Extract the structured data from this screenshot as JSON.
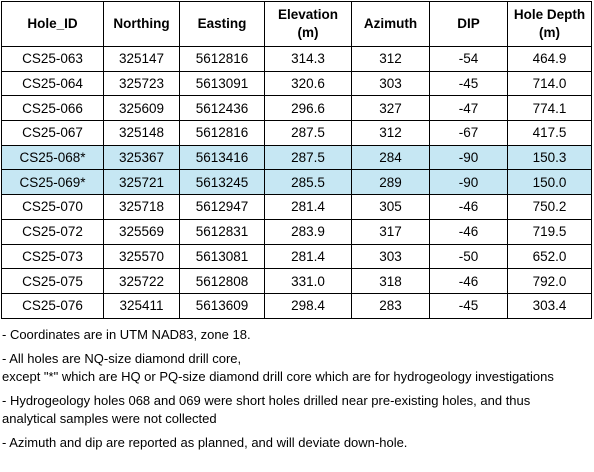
{
  "table": {
    "headers": [
      {
        "line1": "Hole_ID",
        "line2": ""
      },
      {
        "line1": "Northing",
        "line2": ""
      },
      {
        "line1": "Easting",
        "line2": ""
      },
      {
        "line1": "Elevation",
        "line2": "(m)"
      },
      {
        "line1": "Azimuth",
        "line2": ""
      },
      {
        "line1": "DIP",
        "line2": ""
      },
      {
        "line1": "Hole Depth",
        "line2": "(m)"
      }
    ],
    "rows": [
      {
        "hole_id": "CS25-063",
        "northing": "325147",
        "easting": "5612816",
        "elevation": "314.3",
        "azimuth": "312",
        "dip": "-54",
        "depth": "464.9",
        "highlight": false
      },
      {
        "hole_id": "CS25-064",
        "northing": "325723",
        "easting": "5613091",
        "elevation": "320.6",
        "azimuth": "303",
        "dip": "-45",
        "depth": "714.0",
        "highlight": false
      },
      {
        "hole_id": "CS25-066",
        "northing": "325609",
        "easting": "5612436",
        "elevation": "296.6",
        "azimuth": "327",
        "dip": "-47",
        "depth": "774.1",
        "highlight": false
      },
      {
        "hole_id": "CS25-067",
        "northing": "325148",
        "easting": "5612816",
        "elevation": "287.5",
        "azimuth": "312",
        "dip": "-67",
        "depth": "417.5",
        "highlight": false
      },
      {
        "hole_id": "CS25-068*",
        "northing": "325367",
        "easting": "5613416",
        "elevation": "287.5",
        "azimuth": "284",
        "dip": "-90",
        "depth": "150.3",
        "highlight": true
      },
      {
        "hole_id": "CS25-069*",
        "northing": "325721",
        "easting": "5613245",
        "elevation": "285.5",
        "azimuth": "289",
        "dip": "-90",
        "depth": "150.0",
        "highlight": true
      },
      {
        "hole_id": "CS25-070",
        "northing": "325718",
        "easting": "5612947",
        "elevation": "281.4",
        "azimuth": "305",
        "dip": "-46",
        "depth": "750.2",
        "highlight": false
      },
      {
        "hole_id": "CS25-072",
        "northing": "325569",
        "easting": "5612831",
        "elevation": "283.9",
        "azimuth": "317",
        "dip": "-46",
        "depth": "719.5",
        "highlight": false
      },
      {
        "hole_id": "CS25-073",
        "northing": "325570",
        "easting": "5613081",
        "elevation": "281.4",
        "azimuth": "303",
        "dip": "-50",
        "depth": "652.0",
        "highlight": false
      },
      {
        "hole_id": "CS25-075",
        "northing": "325722",
        "easting": "5612808",
        "elevation": "331.0",
        "azimuth": "318",
        "dip": "-46",
        "depth": "792.0",
        "highlight": false
      },
      {
        "hole_id": "CS25-076",
        "northing": "325411",
        "easting": "5613609",
        "elevation": "298.4",
        "azimuth": "283",
        "dip": "-45",
        "depth": "303.4",
        "highlight": false
      }
    ],
    "highlight_color": "#c6e7f3"
  },
  "notes": [
    {
      "lines": [
        "- Coordinates are in UTM NAD83, zone 18."
      ]
    },
    {
      "lines": [
        "- All holes are NQ-size diamond drill core,",
        "except \"*\" which are HQ or PQ-size diamond drill core which are for hydrogeology investigations"
      ]
    },
    {
      "lines": [
        "- Hydrogeology holes 068 and 069 were short holes drilled near pre-existing holes, and thus",
        "analytical samples were not collected"
      ]
    },
    {
      "lines": [
        "- Azimuth and dip are reported as planned, and will deviate down-hole."
      ]
    }
  ]
}
